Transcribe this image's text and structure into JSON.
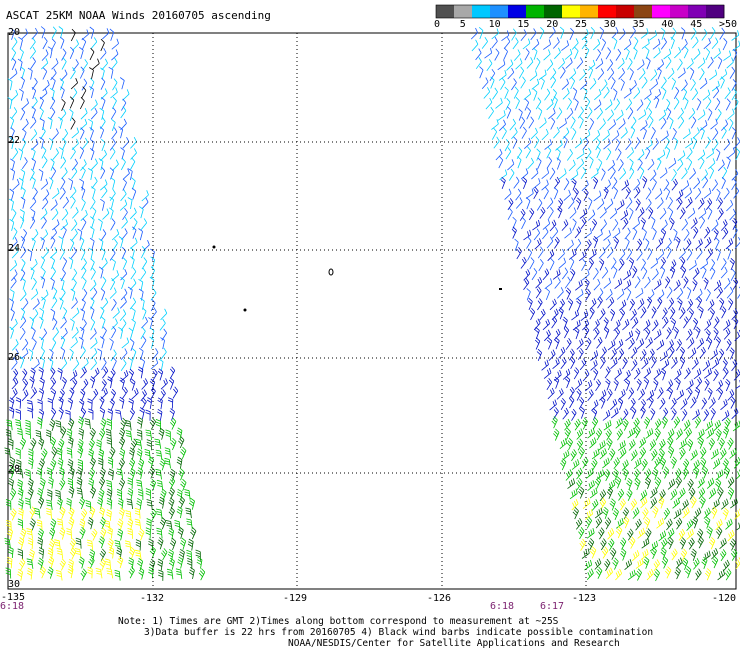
{
  "title": "ASCAT 25KM NOAA Winds 20160705 ascending",
  "colorbar": {
    "labels": [
      "0",
      "5",
      "10",
      "15",
      "20",
      "25",
      "30",
      "35",
      "40",
      "45",
      ">50 knots"
    ],
    "colors": [
      "#505050",
      "#a8a8a8",
      "#00c8ff",
      "#1e90ff",
      "#0000e6",
      "#00b400",
      "#006400",
      "#ffff00",
      "#ffb400",
      "#ff0000",
      "#c80000",
      "#8b4513",
      "#ff00ff",
      "#c800c8",
      "#8000b4",
      "#500080"
    ]
  },
  "map": {
    "lat_labels": [
      "20",
      "22",
      "24",
      "26",
      "28",
      "30"
    ],
    "lon_labels": [
      "-135",
      "-132",
      "-129",
      "-126",
      "-123",
      "-120"
    ],
    "times": [
      "6:18",
      "6:18",
      "6:17"
    ],
    "wind_colors": {
      "light": "#00d0ff",
      "mid": "#1a5cff",
      "strong": "#0010c8",
      "green": "#00c000",
      "darkgreen": "#006400",
      "yellow": "#ffff00",
      "contam": "#000000"
    }
  },
  "notes": {
    "line1": "Note: 1) Times are GMT 2)Times along bottom correspond to measurement at ~25S",
    "line2": "3)Data buffer is 22 hrs from 20160705 4) Black wind barbs indicate possible contamination",
    "line3": "NOAA/NESDIS/Center for Satellite Applications and Research"
  }
}
